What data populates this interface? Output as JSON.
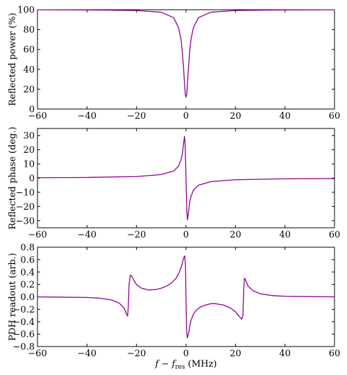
{
  "colors": {
    "curve": "#8b008b"
  },
  "chart_data": [
    {
      "type": "line",
      "ylabel": "Reflected power (%)",
      "xlabel": "",
      "xlim": [
        -60,
        60
      ],
      "ylim": [
        0,
        100
      ],
      "xticks": [
        -60,
        -40,
        -20,
        0,
        20,
        40,
        60
      ],
      "yticks": [
        0,
        20,
        40,
        60,
        80,
        100
      ],
      "series": [
        {
          "x": [
            -60,
            -40,
            -20,
            -10,
            -5,
            -3,
            -2,
            -1.5,
            -1,
            -0.6,
            -0.3,
            0,
            0.3,
            0.6,
            1,
            1.5,
            2,
            3,
            5,
            10,
            20,
            40,
            60
          ],
          "values": [
            99.9,
            99.8,
            99.2,
            97.5,
            92,
            82,
            70,
            58,
            42,
            26,
            15,
            12,
            15,
            26,
            42,
            58,
            70,
            82,
            92,
            97.5,
            99.2,
            99.8,
            99.9
          ]
        }
      ]
    },
    {
      "type": "line",
      "ylabel": "Reflected phase (deg.)",
      "xlabel": "",
      "xlim": [
        -60,
        60
      ],
      "ylim": [
        -35,
        35
      ],
      "xticks": [
        -60,
        -40,
        -20,
        0,
        20,
        40,
        60
      ],
      "yticks": [
        -30,
        -20,
        -10,
        0,
        10,
        20,
        30
      ],
      "series": [
        {
          "x": [
            -60,
            -40,
            -20,
            -10,
            -5,
            -3,
            -2,
            -1.5,
            -1,
            -0.6,
            -0.3,
            0,
            0.3,
            0.6,
            1,
            1.5,
            2,
            3,
            5,
            10,
            20,
            40,
            60
          ],
          "values": [
            0.3,
            0.5,
            1.1,
            2.5,
            5,
            8.5,
            13,
            17,
            24,
            29.5,
            22,
            0,
            -22,
            -29.5,
            -24,
            -17,
            -13,
            -8.5,
            -5,
            -2.5,
            -1.1,
            -0.5,
            -0.3
          ]
        }
      ]
    },
    {
      "type": "line",
      "ylabel": "PDH readout (arb.)",
      "xlabel": "f − f_res (MHz)",
      "xlim": [
        -60,
        60
      ],
      "ylim": [
        -0.8,
        0.8
      ],
      "xticks": [
        -60,
        -40,
        -20,
        0,
        20,
        40,
        60
      ],
      "yticks": [
        -0.8,
        -0.6,
        -0.4,
        -0.2,
        0.0,
        0.2,
        0.4,
        0.6,
        0.8
      ],
      "series": [
        {
          "x": [
            -60,
            -50,
            -40,
            -35,
            -30,
            -27,
            -25,
            -24,
            -23.6,
            -23.3,
            -23,
            -22.5,
            -22,
            -21,
            -20,
            -18,
            -15,
            -12,
            -10,
            -8,
            -6,
            -4,
            -3,
            -2,
            -1.5,
            -1,
            -0.5,
            -0.2,
            0,
            0.2,
            0.5,
            1,
            1.5,
            2,
            3,
            4,
            6,
            8,
            10,
            12,
            15,
            18,
            20,
            21,
            22,
            22.5,
            23,
            23.3,
            23.6,
            24,
            25,
            27,
            30,
            35,
            40,
            50,
            60
          ],
          "values": [
            0,
            -0.005,
            -0.01,
            -0.02,
            -0.05,
            -0.1,
            -0.18,
            -0.28,
            -0.31,
            -0.15,
            0.2,
            0.35,
            0.34,
            0.26,
            0.2,
            0.14,
            0.11,
            0.12,
            0.14,
            0.17,
            0.22,
            0.3,
            0.37,
            0.47,
            0.54,
            0.62,
            0.66,
            0.5,
            0,
            -0.5,
            -0.66,
            -0.6,
            -0.48,
            -0.38,
            -0.28,
            -0.22,
            -0.16,
            -0.13,
            -0.11,
            -0.11,
            -0.13,
            -0.18,
            -0.24,
            -0.29,
            -0.34,
            -0.36,
            -0.3,
            0.1,
            0.3,
            0.28,
            0.18,
            0.1,
            0.05,
            0.02,
            0.01,
            0.005,
            0
          ]
        }
      ]
    }
  ]
}
